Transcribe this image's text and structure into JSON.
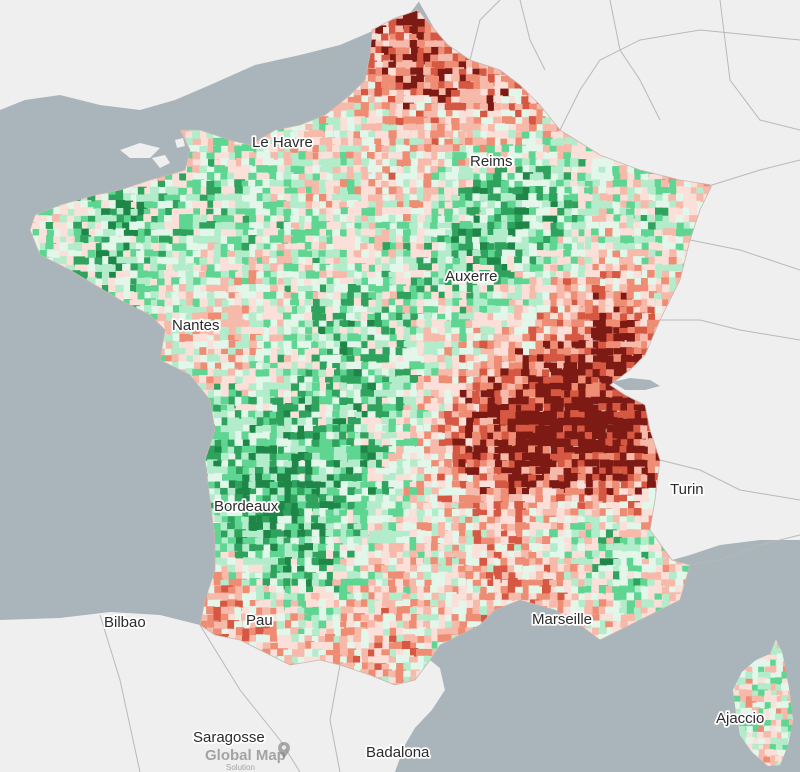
{
  "map": {
    "colors": {
      "sea": "#aab5bb",
      "land": "#efefef",
      "border": "#b9b9b9",
      "choropleth": [
        "#7d1a14",
        "#d65742",
        "#ee8c74",
        "#f6b9aa",
        "#fbe0d9",
        "#e3f6ea",
        "#b3eccb",
        "#5fd592",
        "#2fa35d",
        "#1e8748"
      ]
    },
    "labels": [
      {
        "id": "le-havre",
        "text": "Le Havre"
      },
      {
        "id": "reims",
        "text": "Reims"
      },
      {
        "id": "auxerre",
        "text": "Auxerre"
      },
      {
        "id": "nantes",
        "text": "Nantes"
      },
      {
        "id": "bordeaux",
        "text": "Bordeaux"
      },
      {
        "id": "turin",
        "text": "Turin"
      },
      {
        "id": "bilbao",
        "text": "Bilbao"
      },
      {
        "id": "pau",
        "text": "Pau"
      },
      {
        "id": "marseille",
        "text": "Marseille"
      },
      {
        "id": "ajaccio",
        "text": "Ajaccio"
      },
      {
        "id": "saragosse",
        "text": "Saragosse"
      },
      {
        "id": "badalona",
        "text": "Badalona"
      }
    ],
    "watermark": {
      "title": "Global Map",
      "subtitle": "Solution",
      "icon": "map-pin-icon"
    }
  }
}
